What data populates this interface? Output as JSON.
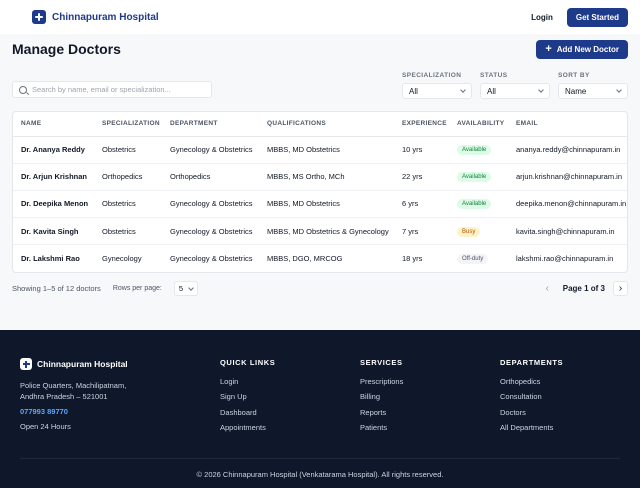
{
  "header": {
    "brand": "Chinnapuram Hospital",
    "login_label": "Login",
    "get_started_label": "Get Started"
  },
  "page": {
    "title": "Manage Doctors",
    "add_button_label": "Add New Doctor"
  },
  "filters": {
    "search_placeholder": "Search by name, email or specialization...",
    "specialization": {
      "label": "SPECIALIZATION",
      "value": "All"
    },
    "status": {
      "label": "STATUS",
      "value": "All"
    },
    "sort": {
      "label": "SORT BY",
      "value": "Name"
    }
  },
  "table": {
    "columns": [
      "NAME",
      "SPECIALIZATION",
      "DEPARTMENT",
      "QUALIFICATIONS",
      "EXPERIENCE",
      "AVAILABILITY",
      "EMAIL"
    ],
    "rows": [
      {
        "name": "Dr. Ananya Reddy",
        "specialization": "Obstetrics",
        "department": "Gynecology & Obstetrics",
        "qualifications": "MBBS, MD Obstetrics",
        "experience": "10 yrs",
        "availability": "Available",
        "email": "ananya.reddy@chinnapuram.in"
      },
      {
        "name": "Dr. Arjun Krishnan",
        "specialization": "Orthopedics",
        "department": "Orthopedics",
        "qualifications": "MBBS, MS Ortho, MCh",
        "experience": "22 yrs",
        "availability": "Available",
        "email": "arjun.krishnan@chinnapuram.in"
      },
      {
        "name": "Dr. Deepika Menon",
        "specialization": "Obstetrics",
        "department": "Gynecology & Obstetrics",
        "qualifications": "MBBS, MD Obstetrics",
        "experience": "6 yrs",
        "availability": "Available",
        "email": "deepika.menon@chinnapuram.in"
      },
      {
        "name": "Dr. Kavita Singh",
        "specialization": "Obstetrics",
        "department": "Gynecology & Obstetrics",
        "qualifications": "MBBS, MD Obstetrics & Gynecology",
        "experience": "7 yrs",
        "availability": "Busy",
        "email": "kavita.singh@chinnapuram.in"
      },
      {
        "name": "Dr. Lakshmi Rao",
        "specialization": "Gynecology",
        "department": "Gynecology & Obstetrics",
        "qualifications": "MBBS, DGO, MRCOG",
        "experience": "18 yrs",
        "availability": "Off-duty",
        "email": "lakshmi.rao@chinnapuram.in"
      }
    ]
  },
  "pagination": {
    "showing": "Showing 1–5 of 12 doctors",
    "rows_per_page_label": "Rows per page:",
    "rows_per_page_value": "5",
    "page_indicator": "Page 1 of 3"
  },
  "footer": {
    "brand": "Chinnapuram Hospital",
    "address_line1": "Police Quarters, Machilipatnam,",
    "address_line2": "Andhra Pradesh – 521001",
    "phone": "077993 89770",
    "hours": "Open 24 Hours",
    "quick_links": {
      "heading": "QUICK LINKS",
      "items": [
        "Login",
        "Sign Up",
        "Dashboard",
        "Appointments"
      ]
    },
    "services": {
      "heading": "SERVICES",
      "items": [
        "Prescriptions",
        "Billing",
        "Reports",
        "Patients"
      ]
    },
    "departments": {
      "heading": "DEPARTMENTS",
      "items": [
        "Orthopedics",
        "Consultation",
        "Doctors",
        "All Departments"
      ]
    },
    "copyright": "© 2026 Chinnapuram Hospital (Venkatarama Hospital). All rights reserved."
  },
  "colors": {
    "primary": "#1e3a8a",
    "footer_bg": "#0f172a",
    "available": "#15803d",
    "busy": "#b45309"
  }
}
